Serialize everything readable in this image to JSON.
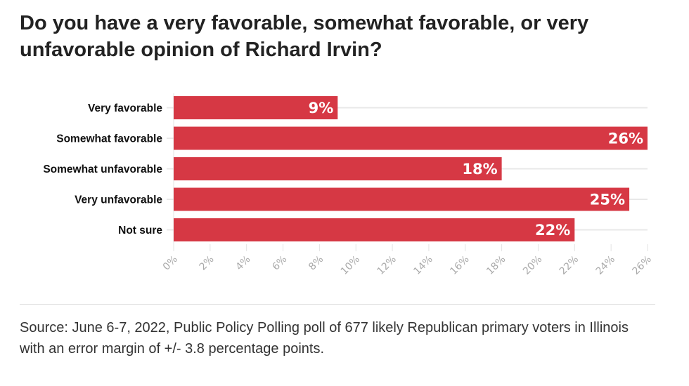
{
  "chart_data": {
    "type": "bar",
    "orientation": "horizontal",
    "title": "Do you have a very favorable, somewhat favorable, or very unfavorable opinion of Richard Irvin?",
    "categories": [
      "Very favorable",
      "Somewhat favorable",
      "Somewhat unfavorable",
      "Very unfavorable",
      "Not sure"
    ],
    "values": [
      9,
      26,
      18,
      25,
      22
    ],
    "data_labels": [
      "9%",
      "26%",
      "18%",
      "25%",
      "22%"
    ],
    "xlim": [
      0,
      26
    ],
    "xticks": [
      0,
      2,
      4,
      6,
      8,
      10,
      12,
      14,
      16,
      18,
      20,
      22,
      24,
      26
    ],
    "xtick_labels": [
      "0%",
      "2%",
      "4%",
      "6%",
      "8%",
      "10%",
      "12%",
      "14%",
      "16%",
      "18%",
      "20%",
      "22%",
      "24%",
      "26%"
    ],
    "xlabel": "",
    "ylabel": "",
    "grid": true,
    "bar_color": "#d63844",
    "source": "Source: June 6-7, 2022, Public Policy Polling poll of 677 likely Republican primary voters in Illinois with an error margin of +/- 3.8 percentage points."
  }
}
